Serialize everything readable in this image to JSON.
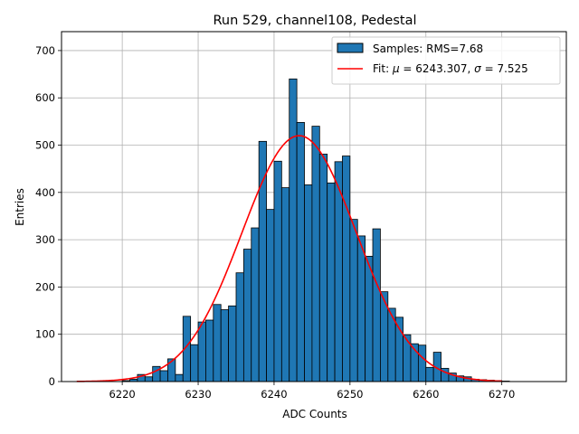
{
  "chart_data": {
    "type": "bar",
    "title": "Run 529, channel108, Pedestal",
    "xlabel": "ADC Counts",
    "ylabel": "Entries",
    "xlim": [
      6212.0,
      6278.5
    ],
    "ylim": [
      0,
      740
    ],
    "xticks": [
      6220,
      6230,
      6240,
      6250,
      6260,
      6270
    ],
    "yticks": [
      0,
      100,
      200,
      300,
      400,
      500,
      600,
      700
    ],
    "grid": true,
    "legend_position": "top-right",
    "colors": {
      "bars": "#1f77b4",
      "fit": "#ff0000"
    },
    "histogram": {
      "name": "Samples: RMS=7.68",
      "bin_start": 6214,
      "bin_width": 1,
      "counts": [
        0,
        0,
        0,
        0,
        0,
        0,
        2,
        5,
        15,
        10,
        32,
        23,
        48,
        15,
        138,
        78,
        126,
        130,
        163,
        152,
        160,
        230,
        280,
        325,
        508,
        364,
        466,
        410,
        640,
        548,
        416,
        540,
        481,
        420,
        465,
        477,
        343,
        308,
        265,
        323,
        190,
        155,
        136,
        99,
        80,
        77,
        30,
        62,
        28,
        18,
        12,
        10,
        5,
        4,
        3,
        2,
        1,
        0,
        0,
        0,
        0,
        0
      ]
    },
    "fit": {
      "name": "Fit: μ = 6243.307, σ = 7.525",
      "label_prefix": "Fit: ",
      "mu_symbol": "μ",
      "mu_text": " = 6243.307, ",
      "sigma_symbol": "σ",
      "sigma_text": " = 7.525",
      "mu": 6243.307,
      "sigma": 7.525,
      "amplitude": 520,
      "x_range": [
        6214,
        6270
      ]
    }
  }
}
